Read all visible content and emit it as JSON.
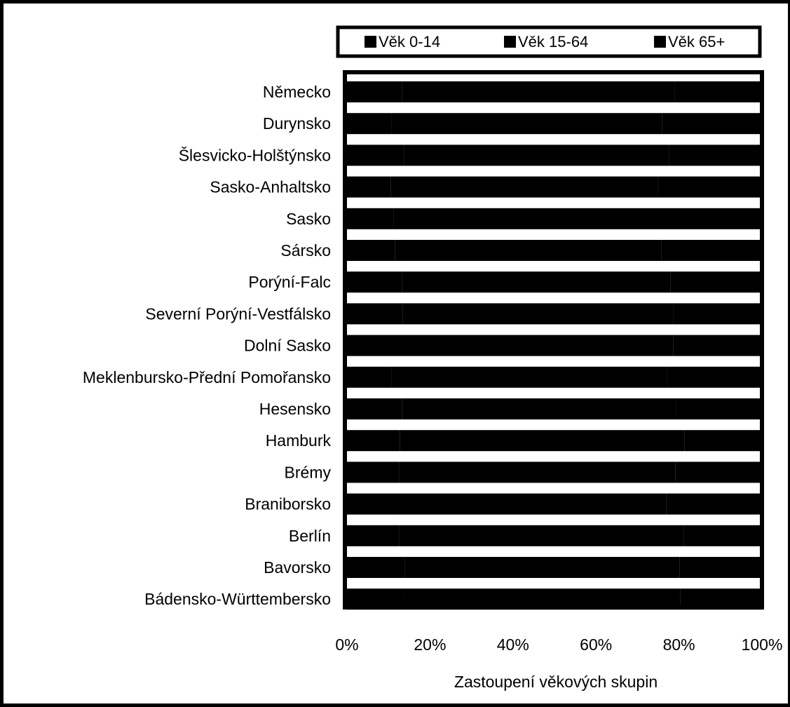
{
  "chart_data": {
    "type": "bar",
    "orientation": "horizontal",
    "stacked": "percent",
    "title": "",
    "xlabel": "Zastoupení věkových skupin",
    "ylabel": "",
    "xlim": [
      0,
      100
    ],
    "x_ticks": [
      "0%",
      "20%",
      "40%",
      "60%",
      "80%",
      "100%"
    ],
    "grid": false,
    "legend_position": "top",
    "categories": [
      "Německo",
      "Durynsko",
      "Šlesvicko-Holštýnsko",
      "Sasko-Anhaltsko",
      "Sasko",
      "Sársko",
      "Porýní-Falc",
      "Severní Porýní-Vestfálsko",
      "Dolní Sasko",
      "Meklenbursko-Přední Pomořansko",
      "Hesensko",
      "Hamburk",
      "Brémy",
      "Braniborsko",
      "Berlín",
      "Bavorsko",
      "Bádensko-Württembersko"
    ],
    "series": [
      {
        "name": "Věk 0-14",
        "color": "#000000",
        "values": [
          13.2,
          10.8,
          13.7,
          10.6,
          11.3,
          11.6,
          13.2,
          13.4,
          13.6,
          10.8,
          13.3,
          12.8,
          12.6,
          11.4,
          12.6,
          14.0,
          14.1
        ]
      },
      {
        "name": "Věk 15-64",
        "color": "#000000",
        "values": [
          65.7,
          65.1,
          63.9,
          64.3,
          63.7,
          64.1,
          64.8,
          65.3,
          65.0,
          66.3,
          66.0,
          68.5,
          66.5,
          65.5,
          68.5,
          66.1,
          66.2
        ]
      },
      {
        "name": "Věk 65+",
        "color": "#000000",
        "values": [
          21.1,
          24.1,
          22.4,
          25.1,
          25.0,
          24.3,
          22.0,
          21.3,
          21.4,
          22.9,
          20.7,
          18.7,
          20.9,
          23.1,
          18.9,
          19.9,
          19.7
        ]
      }
    ]
  }
}
